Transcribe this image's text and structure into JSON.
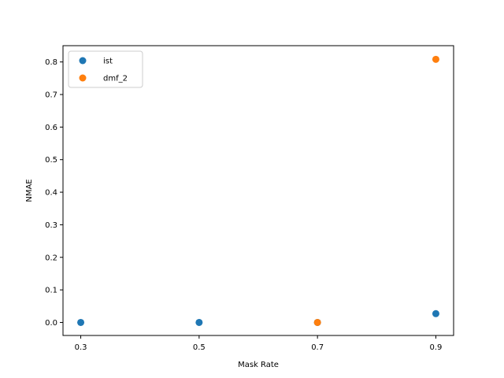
{
  "chart_data": {
    "type": "scatter",
    "title": "",
    "xlabel": "Mask Rate",
    "ylabel": "NMAE",
    "x_ticks": [
      0.3,
      0.5,
      0.7,
      0.9
    ],
    "x_tick_labels": [
      "0.3",
      "0.5",
      "0.7",
      "0.9"
    ],
    "y_ticks": [
      0.0,
      0.1,
      0.2,
      0.3,
      0.4,
      0.5,
      0.6,
      0.7,
      0.8
    ],
    "y_tick_labels": [
      "0.0",
      "0.1",
      "0.2",
      "0.3",
      "0.4",
      "0.5",
      "0.6",
      "0.7",
      "0.8"
    ],
    "xlim": [
      0.27,
      0.93
    ],
    "ylim": [
      -0.04,
      0.85
    ],
    "grid": false,
    "legend": "top-left",
    "series": [
      {
        "name": "ist",
        "color": "#1f77b4",
        "points": [
          {
            "x": 0.3,
            "y": 0.0
          },
          {
            "x": 0.5,
            "y": 0.0
          },
          {
            "x": 0.7,
            "y": 0.0
          },
          {
            "x": 0.9,
            "y": 0.027
          }
        ]
      },
      {
        "name": "dmf_2",
        "color": "#ff7f0e",
        "points": [
          {
            "x": 0.7,
            "y": 0.0
          },
          {
            "x": 0.9,
            "y": 0.808
          }
        ]
      }
    ]
  }
}
